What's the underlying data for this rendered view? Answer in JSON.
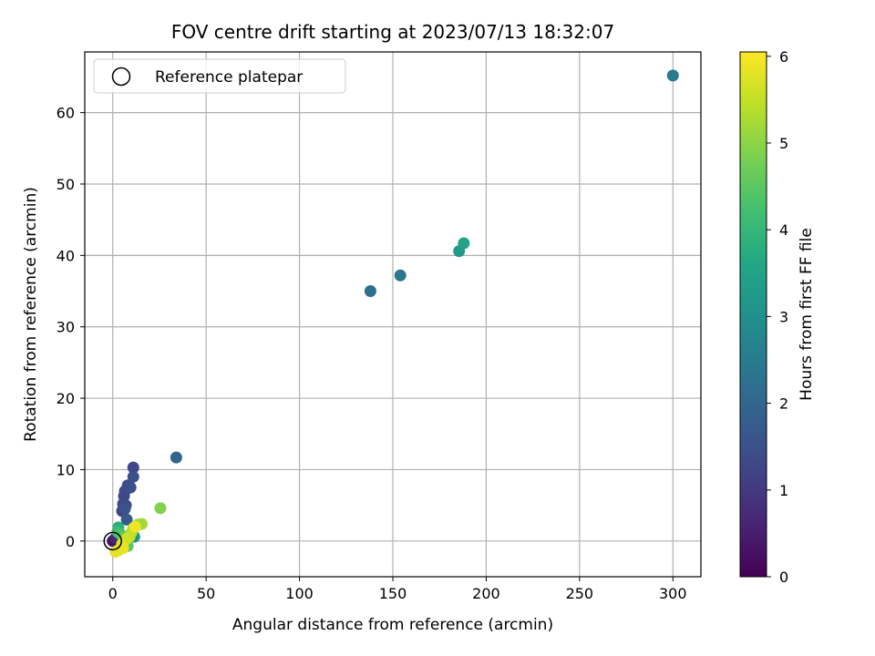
{
  "chart_data": {
    "type": "scatter",
    "title": "FOV centre drift starting at 2023/07/13 18:32:07",
    "xlabel": "Angular distance from reference (arcmin)",
    "ylabel": "Rotation from reference (arcmin)",
    "xlim": [
      -15,
      315
    ],
    "ylim": [
      -5,
      68.5
    ],
    "xticks": [
      0,
      50,
      100,
      150,
      200,
      250,
      300
    ],
    "yticks": [
      0,
      10,
      20,
      30,
      40,
      50,
      60
    ],
    "grid": true,
    "legend": {
      "placement": "top-left",
      "entries": [
        "Reference platepar"
      ]
    },
    "colorbar": {
      "label": "Hours from first FF file",
      "range": [
        0,
        6.05
      ],
      "ticks": [
        0,
        1,
        2,
        3,
        4,
        5,
        6
      ],
      "colormap": "viridis"
    },
    "reference_point": {
      "x": 0,
      "y": 0
    },
    "points": [
      {
        "x": 0,
        "y": 0,
        "c": 0.15
      },
      {
        "x": 0.5,
        "y": 0.1,
        "c": 0.3
      },
      {
        "x": 1.5,
        "y": 0.4,
        "c": 0.6
      },
      {
        "x": 5,
        "y": 4.2,
        "c": 1.2
      },
      {
        "x": 5.5,
        "y": 5.2,
        "c": 1.25
      },
      {
        "x": 6,
        "y": 6.3,
        "c": 1.3
      },
      {
        "x": 6.5,
        "y": 7.0,
        "c": 1.35
      },
      {
        "x": 7,
        "y": 5.0,
        "c": 1.4
      },
      {
        "x": 8,
        "y": 7.8,
        "c": 1.4
      },
      {
        "x": 9.5,
        "y": 7.5,
        "c": 1.45
      },
      {
        "x": 11,
        "y": 10.3,
        "c": 1.3
      },
      {
        "x": 11,
        "y": 9.0,
        "c": 1.5
      },
      {
        "x": 6.5,
        "y": 4.5,
        "c": 1.55
      },
      {
        "x": 7.5,
        "y": 3.0,
        "c": 1.7
      },
      {
        "x": 34,
        "y": 11.7,
        "c": 2.0
      },
      {
        "x": 138,
        "y": 35.0,
        "c": 2.2
      },
      {
        "x": 154,
        "y": 37.2,
        "c": 2.35
      },
      {
        "x": 300,
        "y": 65.2,
        "c": 2.5
      },
      {
        "x": 185.5,
        "y": 40.6,
        "c": 3.3
      },
      {
        "x": 188,
        "y": 41.7,
        "c": 3.5
      },
      {
        "x": 11.5,
        "y": 0.6,
        "c": 3.1
      },
      {
        "x": 3,
        "y": 1.9,
        "c": 3.8
      },
      {
        "x": 2.5,
        "y": 1.3,
        "c": 4.1
      },
      {
        "x": 4,
        "y": 1.0,
        "c": 4.3
      },
      {
        "x": 8,
        "y": -0.7,
        "c": 4.5
      },
      {
        "x": 6,
        "y": 0.5,
        "c": 4.6
      },
      {
        "x": 25.5,
        "y": 4.6,
        "c": 4.9
      },
      {
        "x": 13.5,
        "y": 2.3,
        "c": 5.0
      },
      {
        "x": 15.5,
        "y": 2.4,
        "c": 5.2
      },
      {
        "x": 11,
        "y": 1.8,
        "c": 5.3
      },
      {
        "x": 10,
        "y": 1.2,
        "c": 5.4
      },
      {
        "x": 9,
        "y": 0.6,
        "c": 5.5
      },
      {
        "x": 7,
        "y": 0.2,
        "c": 5.6
      },
      {
        "x": 5,
        "y": -0.4,
        "c": 5.65
      },
      {
        "x": 4,
        "y": -1.1,
        "c": 5.7
      },
      {
        "x": 3,
        "y": -1.3,
        "c": 5.75
      },
      {
        "x": 1.5,
        "y": -1.5,
        "c": 5.8
      },
      {
        "x": 5.5,
        "y": -1.0,
        "c": 5.85
      },
      {
        "x": 12,
        "y": 2.0,
        "c": 5.9
      }
    ]
  }
}
